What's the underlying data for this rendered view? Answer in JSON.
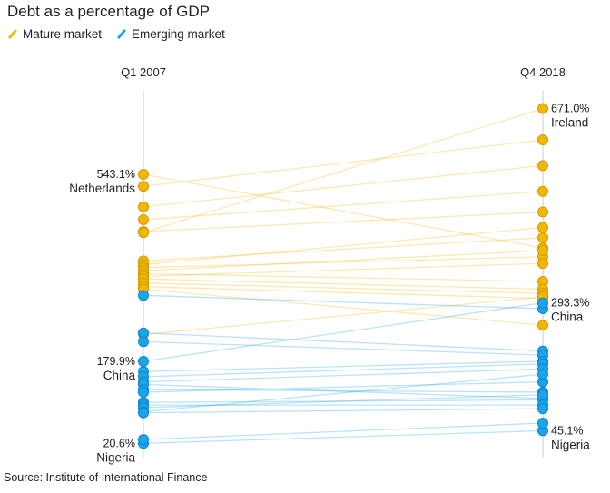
{
  "title": "Debt as a percentage of GDP",
  "legend": [
    {
      "label": "Mature market",
      "color": "#f2b705"
    },
    {
      "label": "Emerging market",
      "color": "#1ba3ec"
    }
  ],
  "source": "Source: Institute of International Finance",
  "chart_data": {
    "type": "slope",
    "x_labels": [
      "Q1 2007",
      "Q4 2018"
    ],
    "y_range": [
      0,
      700
    ],
    "series_colors": {
      "mature": "#f2b705",
      "emerging": "#1ba3ec"
    },
    "countries": [
      {
        "name": "Netherlands",
        "group": "mature",
        "v2007": 543.1,
        "v2018": 400
      },
      {
        "name": "",
        "group": "mature",
        "v2007": 520,
        "v2018": 610
      },
      {
        "name": "",
        "group": "mature",
        "v2007": 480,
        "v2018": 560
      },
      {
        "name": "",
        "group": "mature",
        "v2007": 455,
        "v2018": 510
      },
      {
        "name": "",
        "group": "mature",
        "v2007": 432,
        "v2018": 470
      },
      {
        "name": "Ireland",
        "group": "mature",
        "v2007": 430,
        "v2018": 671.0
      },
      {
        "name": "",
        "group": "mature",
        "v2007": 375,
        "v2018": 420
      },
      {
        "name": "",
        "group": "mature",
        "v2007": 368,
        "v2018": 440
      },
      {
        "name": "",
        "group": "mature",
        "v2007": 362,
        "v2018": 383
      },
      {
        "name": "",
        "group": "mature",
        "v2007": 356,
        "v2018": 395
      },
      {
        "name": "",
        "group": "mature",
        "v2007": 350,
        "v2018": 335
      },
      {
        "name": "",
        "group": "mature",
        "v2007": 345,
        "v2018": 370
      },
      {
        "name": "",
        "group": "mature",
        "v2007": 340,
        "v2018": 320
      },
      {
        "name": "",
        "group": "mature",
        "v2007": 332,
        "v2018": 312
      },
      {
        "name": "",
        "group": "mature",
        "v2007": 325,
        "v2018": 302
      },
      {
        "name": "",
        "group": "mature",
        "v2007": 320,
        "v2018": 250
      },
      {
        "name": "",
        "group": "mature",
        "v2007": 232,
        "v2018": 305
      },
      {
        "name": "",
        "group": "emerging",
        "v2007": 308,
        "v2018": 282
      },
      {
        "name": "",
        "group": "emerging",
        "v2007": 235,
        "v2018": 200
      },
      {
        "name": "",
        "group": "emerging",
        "v2007": 218,
        "v2018": 192
      },
      {
        "name": "China",
        "group": "emerging",
        "v2007": 179.9,
        "v2018": 293.3
      },
      {
        "name": "",
        "group": "emerging",
        "v2007": 160,
        "v2018": 180
      },
      {
        "name": "",
        "group": "emerging",
        "v2007": 150,
        "v2018": 175
      },
      {
        "name": "",
        "group": "emerging",
        "v2007": 140,
        "v2018": 165
      },
      {
        "name": "",
        "group": "emerging",
        "v2007": 135,
        "v2018": 108
      },
      {
        "name": "",
        "group": "emerging",
        "v2007": 125,
        "v2018": 120
      },
      {
        "name": "",
        "group": "emerging",
        "v2007": 120,
        "v2018": 140
      },
      {
        "name": "",
        "group": "emerging",
        "v2007": 100,
        "v2018": 105
      },
      {
        "name": "",
        "group": "emerging",
        "v2007": 95,
        "v2018": 95
      },
      {
        "name": "",
        "group": "emerging",
        "v2007": 90,
        "v2018": 115
      },
      {
        "name": "",
        "group": "emerging",
        "v2007": 82,
        "v2018": 155
      },
      {
        "name": "",
        "group": "emerging",
        "v2007": 80,
        "v2018": 88
      },
      {
        "name": "Nigeria",
        "group": "emerging",
        "v2007": 20.6,
        "v2018": 45.1
      },
      {
        "name": "",
        "group": "emerging",
        "v2007": 28,
        "v2018": 60
      }
    ],
    "labels": [
      {
        "side": "left",
        "name": "Netherlands",
        "value": "543.1%"
      },
      {
        "side": "left",
        "name": "China",
        "value": "179.9%"
      },
      {
        "side": "left",
        "name": "Nigeria",
        "value": "20.6%"
      },
      {
        "side": "right",
        "name": "Ireland",
        "value": "671.0%"
      },
      {
        "side": "right",
        "name": "China",
        "value": "293.3%"
      },
      {
        "side": "right",
        "name": "Nigeria",
        "value": "45.1%"
      }
    ]
  }
}
